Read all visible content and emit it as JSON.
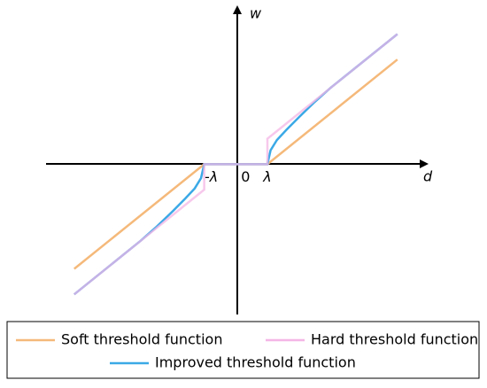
{
  "chart_data": {
    "type": "line",
    "x_label": "d",
    "y_label": "w",
    "xlim": [
      -6,
      5.9
    ],
    "ylim": [
      -5.9,
      6.1
    ],
    "xticks": [
      {
        "value": -1,
        "label": "-λ"
      },
      0,
      {
        "value": 1,
        "label": "λ"
      }
    ],
    "series": [
      {
        "name": "Soft threshold function",
        "color": "#f5b97a",
        "x": [
          -5.11,
          -1,
          1,
          5.11
        ],
        "values": [
          -4.11,
          0,
          0,
          4.11
        ]
      },
      {
        "name": "Hard threshold function",
        "color": "#f4b6e6",
        "x": [
          -5.11,
          -1,
          -1,
          1,
          1,
          5.11
        ],
        "values": [
          -5.11,
          -1,
          0,
          0,
          1,
          5.11
        ]
      },
      {
        "name": "Improved threshold function",
        "color": "#3ba9e6",
        "x": [
          -5.11,
          -3,
          -2.5,
          -2,
          -1.6,
          -1.3,
          -1.1,
          -1,
          1,
          1.1,
          1.3,
          1.6,
          2,
          2.5,
          3,
          5.11
        ],
        "values": [
          -5.11,
          -3,
          -2.45,
          -1.85,
          -1.35,
          -0.95,
          -0.55,
          0,
          0,
          0.55,
          0.95,
          1.35,
          1.85,
          2.45,
          3,
          5.11
        ]
      }
    ]
  }
}
